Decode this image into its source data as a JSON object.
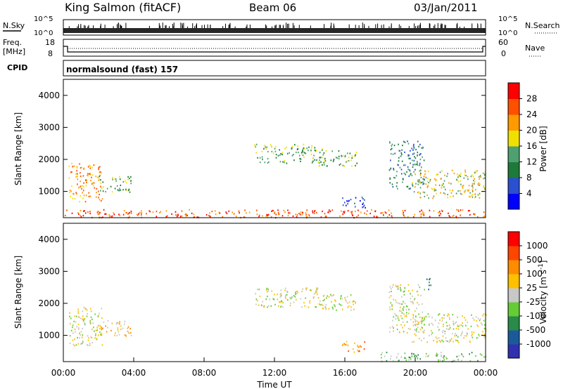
{
  "header": {
    "station": "King Salmon (fitACF)",
    "beam": "Beam 06",
    "date": "03/Jan/2011"
  },
  "panels": {
    "nsky_label": "N.Sky",
    "nsky_ticks": [
      "10^5",
      "10^0"
    ],
    "nsearch_label": "N.Search",
    "nsearch_ticks": [
      "10^5",
      "10^0"
    ],
    "freq_label_1": "Freq.",
    "freq_label_2": "[MHz]",
    "freq_ticks": [
      "18",
      "8"
    ],
    "nave_label": "Nave",
    "nave_ticks": [
      "60",
      "0"
    ],
    "cpid_label": "CPID",
    "cpid_value": "normalsound (fast) 157"
  },
  "colors": {
    "power": [
      "#0000ff",
      "#2a4fd0",
      "#1e7a3a",
      "#4fa070",
      "#f0e000",
      "#ff9a00",
      "#ff5000",
      "#ff0000"
    ],
    "velocity": [
      "#3030b0",
      "#1a5a9a",
      "#2a8a4a",
      "#66cc33",
      "#c8c8c8",
      "#ffc000",
      "#ff8c00",
      "#ff4500",
      "#ff0000"
    ]
  },
  "chart_data": [
    {
      "type": "heatmap",
      "ylabel": "Slant Range [km]",
      "xlabel": "",
      "ylim": [
        180,
        4500
      ],
      "y_ticks": [
        "4000",
        "3000",
        "2000",
        "1000"
      ],
      "colorbar": {
        "label": "Power [dB]",
        "ticks": [
          "28",
          "24",
          "20",
          "16",
          "12",
          "8",
          "4"
        ]
      },
      "regions": [
        {
          "t0": 0.3,
          "t1": 2.2,
          "r0": 700,
          "r1": 1900,
          "level": 5
        },
        {
          "t0": 2.0,
          "t1": 3.9,
          "r0": 1000,
          "r1": 1500,
          "level": 3
        },
        {
          "t0": 10.8,
          "t1": 14.8,
          "r0": 1900,
          "r1": 2500,
          "level": 3
        },
        {
          "t0": 14.5,
          "t1": 16.7,
          "r0": 1800,
          "r1": 2300,
          "level": 3
        },
        {
          "t0": 15.8,
          "t1": 17.2,
          "r0": 500,
          "r1": 850,
          "level": 1
        },
        {
          "t0": 18.5,
          "t1": 20.5,
          "r0": 1100,
          "r1": 2600,
          "level": 2
        },
        {
          "t0": 19.8,
          "t1": 24.0,
          "r0": 800,
          "r1": 1700,
          "level": 4
        },
        {
          "t0": 0.0,
          "t1": 24.0,
          "r0": 200,
          "r1": 450,
          "level": 6
        }
      ]
    },
    {
      "type": "heatmap",
      "ylabel": "Slant Range [km]",
      "xlabel": "Time UT",
      "ylim": [
        180,
        4500
      ],
      "y_ticks": [
        "4000",
        "3000",
        "2000",
        "1000"
      ],
      "x_ticks": [
        "00:00",
        "04:00",
        "08:00",
        "12:00",
        "16:00",
        "20:00",
        "00:00"
      ],
      "colorbar": {
        "label": "Velocity [m s^-1]",
        "ticks": [
          "1000",
          "500",
          "100",
          "25",
          "-25",
          "-100",
          "-500",
          "-1000"
        ]
      },
      "regions": [
        {
          "t0": 0.3,
          "t1": 2.2,
          "r0": 700,
          "r1": 1900,
          "level": 4
        },
        {
          "t0": 2.0,
          "t1": 3.9,
          "r0": 1000,
          "r1": 1500,
          "level": 5
        },
        {
          "t0": 10.8,
          "t1": 14.8,
          "r0": 1900,
          "r1": 2500,
          "level": 4
        },
        {
          "t0": 14.5,
          "t1": 16.7,
          "r0": 1800,
          "r1": 2300,
          "level": 4
        },
        {
          "t0": 15.8,
          "t1": 17.2,
          "r0": 500,
          "r1": 850,
          "level": 6
        },
        {
          "t0": 18.5,
          "t1": 20.5,
          "r0": 1100,
          "r1": 2600,
          "level": 4
        },
        {
          "t0": 19.8,
          "t1": 24.0,
          "r0": 800,
          "r1": 1700,
          "level": 4
        },
        {
          "t0": 18.0,
          "t1": 24.0,
          "r0": 200,
          "r1": 500,
          "level": 3
        },
        {
          "t0": 20.6,
          "t1": 21.0,
          "r0": 2400,
          "r1": 2800,
          "level": 1
        }
      ]
    }
  ]
}
